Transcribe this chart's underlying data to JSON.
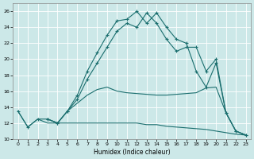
{
  "xlabel": "Humidex (Indice chaleur)",
  "bg_color": "#cce8e8",
  "grid_color": "#ffffff",
  "line_color": "#1a6e6e",
  "xlim": [
    -0.5,
    23.5
  ],
  "ylim": [
    10,
    27
  ],
  "xticks": [
    0,
    1,
    2,
    3,
    4,
    5,
    6,
    7,
    8,
    9,
    10,
    11,
    12,
    13,
    14,
    15,
    16,
    17,
    18,
    19,
    20,
    21,
    22,
    23
  ],
  "yticks": [
    10,
    12,
    14,
    16,
    18,
    20,
    22,
    24,
    26
  ],
  "curve1_x": [
    0,
    1,
    2,
    3,
    4,
    5,
    6,
    7,
    8,
    9,
    10,
    11,
    12,
    13,
    14,
    15,
    16,
    17,
    18,
    19,
    20,
    21,
    22,
    23
  ],
  "curve1_y": [
    13.5,
    11.5,
    12.5,
    12.0,
    12.0,
    12.0,
    12.0,
    12.0,
    12.0,
    12.0,
    12.0,
    12.0,
    12.0,
    11.8,
    11.8,
    11.6,
    11.5,
    11.4,
    11.3,
    11.2,
    11.0,
    10.8,
    10.6,
    10.5
  ],
  "curve2_x": [
    3,
    4,
    5,
    6,
    7,
    8,
    9,
    10,
    11,
    12,
    13,
    14,
    15,
    16,
    17,
    18,
    19,
    20,
    21,
    22,
    23
  ],
  "curve2_y": [
    12.5,
    12.0,
    13.5,
    14.5,
    15.5,
    16.2,
    16.5,
    16.0,
    15.8,
    15.7,
    15.6,
    15.5,
    15.5,
    15.6,
    15.7,
    15.8,
    16.4,
    16.5,
    13.3,
    11.0,
    10.5
  ],
  "curve3_x": [
    0,
    1,
    2,
    3,
    4,
    5,
    6,
    7,
    8,
    9,
    10,
    11,
    12,
    13,
    14,
    15,
    16,
    17,
    18,
    19,
    20,
    21,
    22,
    23
  ],
  "curve3_y": [
    13.5,
    11.5,
    12.5,
    12.5,
    12.0,
    13.5,
    15.5,
    18.5,
    20.8,
    23.0,
    24.8,
    25.0,
    26.0,
    24.5,
    25.8,
    24.0,
    22.5,
    22.0,
    18.5,
    16.5,
    19.5,
    13.3,
    11.0,
    10.5
  ],
  "curve4_x": [
    3,
    4,
    5,
    6,
    7,
    8,
    9,
    10,
    11,
    12,
    13,
    14,
    15,
    16,
    17,
    18,
    19,
    20,
    21,
    22,
    23
  ],
  "curve4_y": [
    12.5,
    12.0,
    13.5,
    15.0,
    17.5,
    19.5,
    21.5,
    23.5,
    24.5,
    24.0,
    25.8,
    24.5,
    22.5,
    21.0,
    21.5,
    21.5,
    18.5,
    20.0,
    13.3,
    11.0,
    10.5
  ]
}
